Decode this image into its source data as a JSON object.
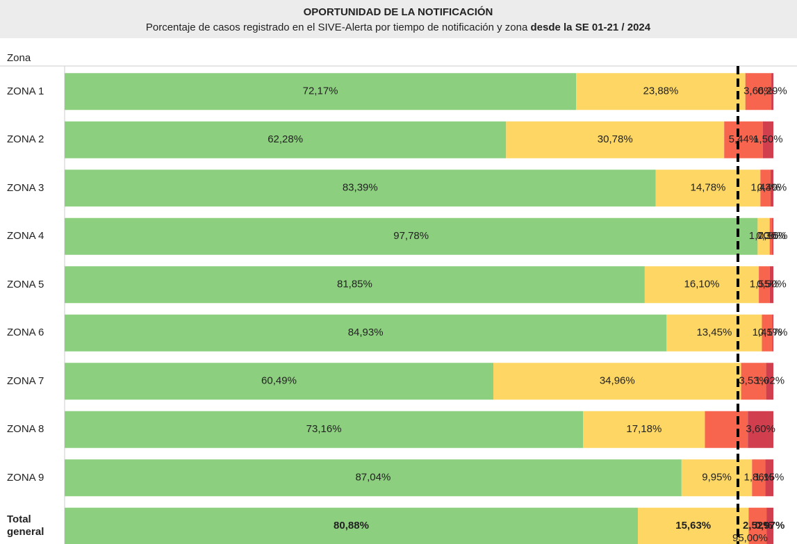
{
  "chart_data": {
    "type": "stacked_barh",
    "title": "OPORTUNIDAD DE LA NOTIFICACIÓN",
    "subtitle": "Porcentaje de casos registrado en el SIVE-Alerta por tiempo de notificación y zona ",
    "subtitle_bold": "desde la SE 01-21 / 2024",
    "y_label": "Zona",
    "categories": [
      "ZONA 1",
      "ZONA 2",
      "ZONA 3",
      "ZONA 4",
      "ZONA 5",
      "ZONA 6",
      "ZONA 7",
      "ZONA 8",
      "ZONA 9",
      "Total general"
    ],
    "xlim": [
      0,
      100
    ],
    "series": [
      {
        "color": "#8ccf7e",
        "values": [
          72.17,
          62.28,
          83.39,
          97.78,
          81.85,
          84.93,
          60.49,
          73.16,
          87.04,
          80.88
        ],
        "value_labels": [
          "72,17%",
          "62,28%",
          "83,39%",
          "97,78%",
          "81,85%",
          "84,93%",
          "60,49%",
          "73,16%",
          "87,04%",
          "80,88%"
        ]
      },
      {
        "color": "#fdd663",
        "values": [
          23.88,
          30.78,
          14.78,
          1.7,
          16.1,
          13.45,
          34.96,
          17.18,
          9.95,
          15.63
        ],
        "value_labels": [
          "23,88%",
          "30,78%",
          "14,78%",
          "1,70%",
          "16,10%",
          "13,45%",
          "34,96%",
          "17,18%",
          "9,95%",
          "15,63%"
        ]
      },
      {
        "color": "#f7654e",
        "values": [
          3.66,
          5.44,
          1.43,
          0.36,
          1.55,
          1.45,
          3.53,
          6.06,
          1.86,
          2.52
        ],
        "value_labels": [
          "3,66%",
          "5,44%",
          "1,43%",
          "0,36%",
          "1,55%",
          "1,45%",
          "3,53%",
          null,
          "1,86%",
          "2,52%"
        ]
      },
      {
        "color": "#d13f4f",
        "values": [
          0.29,
          1.5,
          0.4,
          0.16,
          0.5,
          0.17,
          1.02,
          3.6,
          1.15,
          0.97
        ],
        "value_labels": [
          "0,29%",
          "1,50%",
          "0,40%",
          "0,16%",
          "0,50%",
          "0,17%",
          "1,02%",
          "3,60%",
          "1,15%",
          "0,97%"
        ]
      }
    ],
    "reference_line": {
      "value": 95,
      "label": "95,00%"
    }
  }
}
